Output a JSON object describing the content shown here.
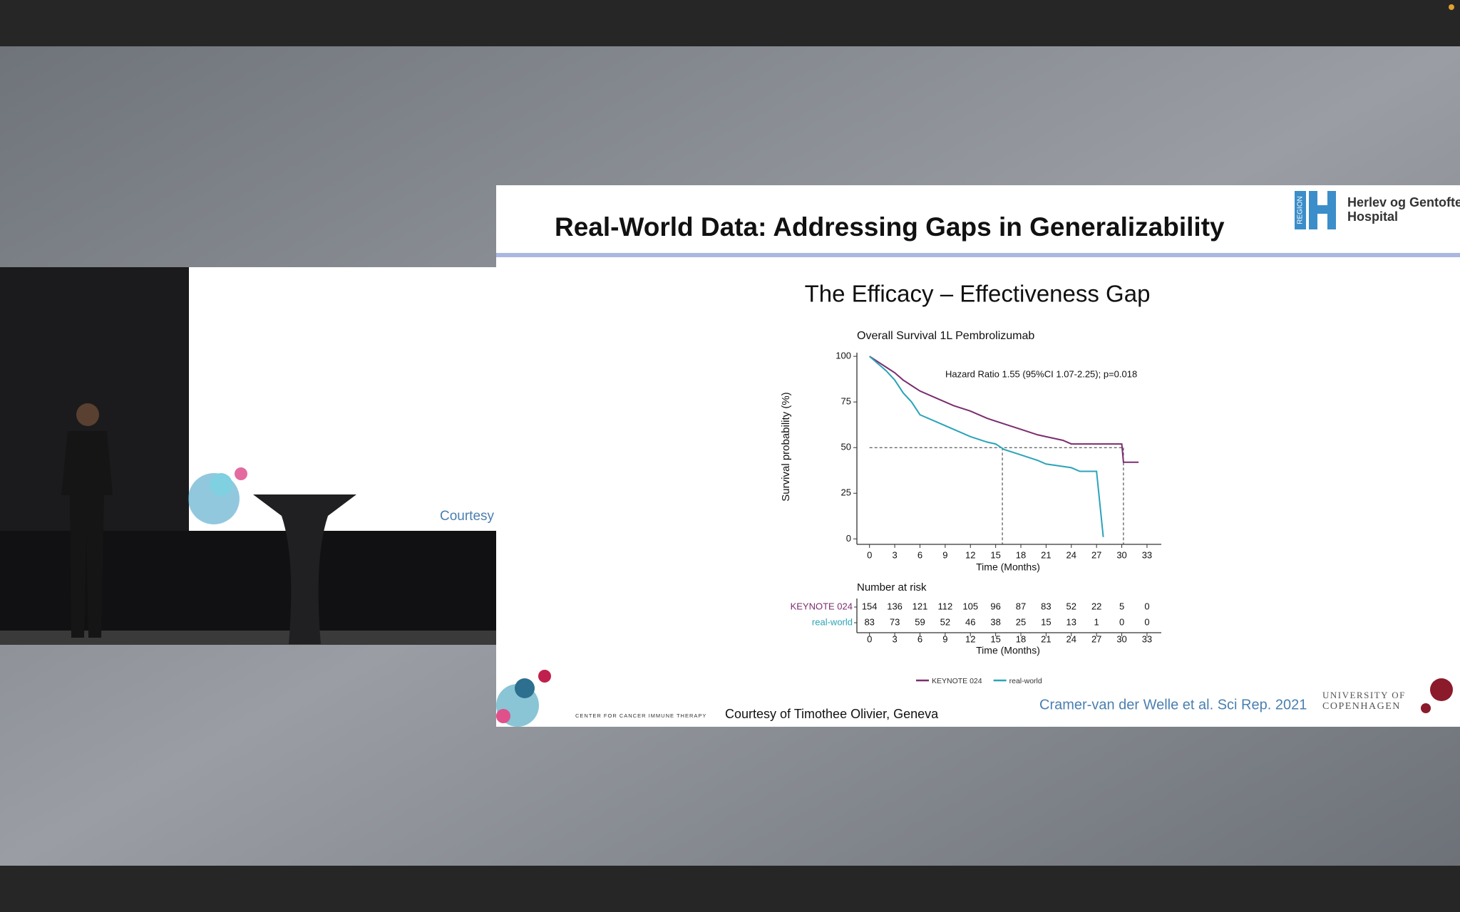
{
  "video": {
    "screen_text": "Courtesy"
  },
  "slide": {
    "title": "Real-World Data: Addressing Gaps in Generalizability",
    "subtitle": "The Efficacy – Effectiveness Gap",
    "logo": [
      "Herlev og Gentofte",
      "Hospital"
    ],
    "logo_badge": "REGION",
    "center_name": "CENTER FOR CANCER IMMUNE THERAPY",
    "courtesy": "Courtesy of Timothee Olivier, Geneva",
    "citation": "Cramer-van der Welle et al. Sci Rep. 2021",
    "university": [
      "UNIVERSITY OF",
      "COPENHAGEN"
    ]
  },
  "chart_data": {
    "type": "line",
    "step": true,
    "title": "Overall Survival 1L Pembrolizumab",
    "annotation": "Hazard Ratio 1.55 (95%CI 1.07-2.25); p=0.018",
    "xlabel": "Time (Months)",
    "ylabel": "Survival probability (%)",
    "xlim": [
      -1.5,
      34.7
    ],
    "ylim": [
      -3,
      102
    ],
    "xticks": [
      0,
      3,
      6,
      9,
      12,
      15,
      18,
      21,
      24,
      27,
      30,
      33
    ],
    "yticks": [
      0,
      25,
      50,
      75,
      100
    ],
    "reference_y": 50,
    "median_x": [
      15.8,
      30.2
    ],
    "series": [
      {
        "name": "KEYNOTE 024",
        "color": "#7b2d6e",
        "x": [
          0,
          1,
          2,
          3,
          4,
          5,
          6,
          8,
          10,
          12,
          14,
          16,
          18,
          20,
          21,
          23,
          24,
          27,
          30,
          30.2,
          32
        ],
        "values": [
          100,
          97,
          94,
          91,
          87,
          84,
          81,
          77,
          73,
          70,
          66,
          63,
          60,
          57,
          56,
          54,
          52,
          52,
          52,
          42,
          42
        ]
      },
      {
        "name": "real-world",
        "color": "#2ba3b8",
        "x": [
          0,
          1,
          2,
          3,
          4,
          5,
          6,
          8,
          10,
          12,
          14,
          15,
          16,
          18,
          20,
          21,
          24,
          25,
          27,
          27.8
        ],
        "values": [
          100,
          96,
          92,
          87,
          80,
          75,
          68,
          64,
          60,
          56,
          53,
          52,
          49,
          46,
          43,
          41,
          39,
          37,
          37,
          1
        ]
      }
    ],
    "risk_table": {
      "title": "Number at risk",
      "xlabel": "Time (Months)",
      "rows": [
        {
          "name": "KEYNOTE 024",
          "values": [
            154,
            136,
            121,
            112,
            105,
            96,
            87,
            83,
            52,
            22,
            5,
            0
          ]
        },
        {
          "name": "real-world",
          "values": [
            83,
            73,
            59,
            52,
            46,
            38,
            25,
            15,
            13,
            1,
            0,
            0
          ]
        }
      ]
    }
  }
}
